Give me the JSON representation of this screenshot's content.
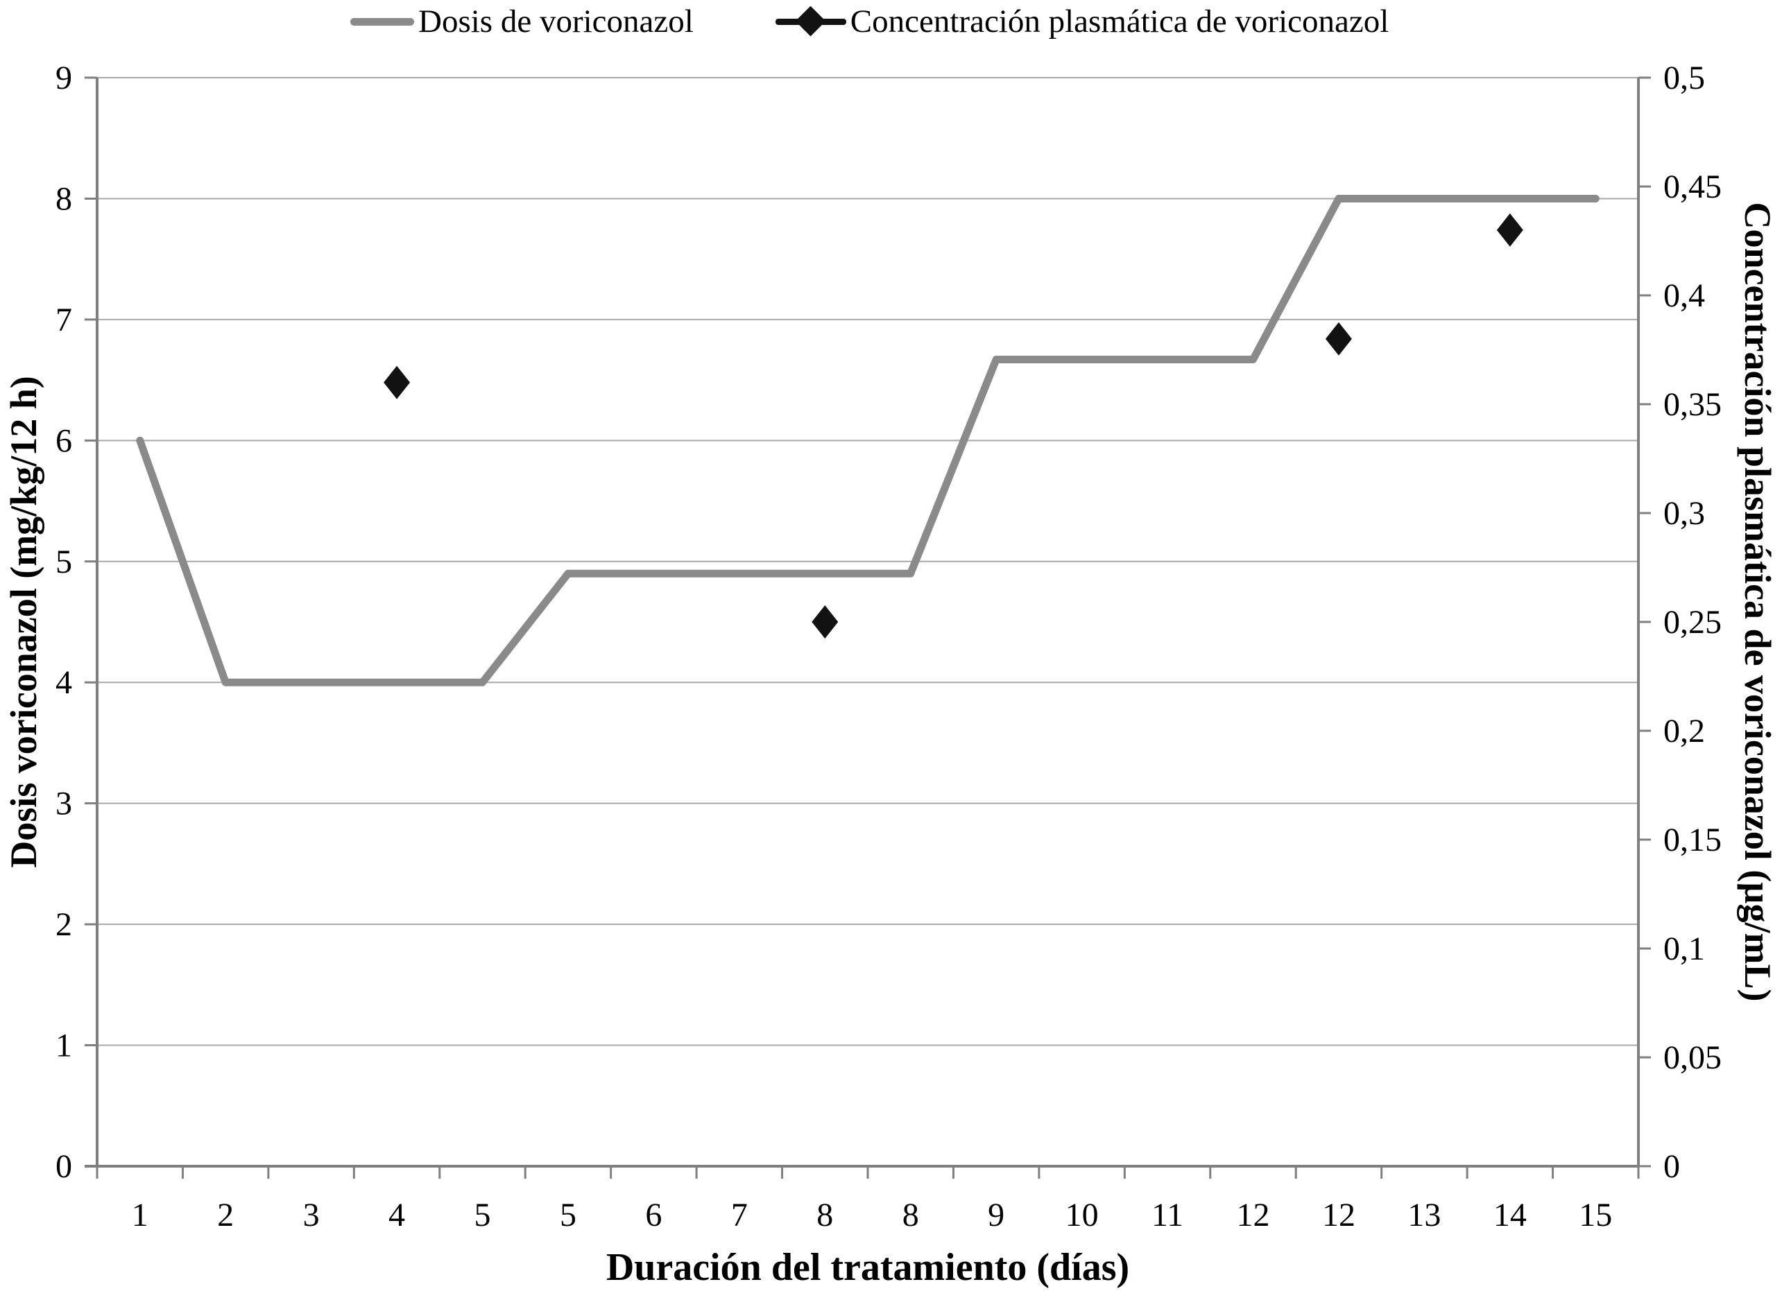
{
  "legend": {
    "items": [
      {
        "label": "Dosis de voriconazol",
        "swatch": "gray-line-icon",
        "color": "#8a8a8a"
      },
      {
        "label": "Concentración plasmática de voriconazol",
        "swatch": "black-diamond-line-icon",
        "color": "#121212"
      }
    ]
  },
  "axes": {
    "left": {
      "title": "Dosis voriconazol (mg/kg/12 h)",
      "tick_labels": [
        "0",
        "1",
        "2",
        "3",
        "4",
        "5",
        "6",
        "7",
        "8",
        "9"
      ]
    },
    "right": {
      "title": "Concentración plasmática de voriconazol (µg/mL)",
      "tick_labels": [
        "0",
        "0,05",
        "0,1",
        "0,15",
        "0,2",
        "0,25",
        "0,3",
        "0,35",
        "0,4",
        "0,45",
        "0,5"
      ]
    },
    "x": {
      "title": "Duración del tratamiento (días)",
      "tick_labels": [
        "1",
        "2",
        "3",
        "4",
        "5",
        "5",
        "6",
        "7",
        "8",
        "8",
        "9",
        "10",
        "11",
        "12",
        "12",
        "13",
        "14",
        "15"
      ]
    }
  },
  "chart_data": {
    "type": "line",
    "title": "",
    "categories": [
      "1",
      "2",
      "3",
      "4",
      "5",
      "5",
      "6",
      "7",
      "8",
      "8",
      "9",
      "10",
      "11",
      "12",
      "12",
      "13",
      "14",
      "15"
    ],
    "xlabel": "Duración del tratamiento (días)",
    "left_axis": {
      "label": "Dosis voriconazol (mg/kg/12 h)",
      "range": [
        0,
        9
      ],
      "tick_step": 1
    },
    "right_axis": {
      "label": "Concentración plasmática de voriconazol (µg/mL)",
      "range": [
        0,
        0.5
      ],
      "tick_step": 0.05
    },
    "grid": "horizontal",
    "legend_position": "top",
    "series": [
      {
        "name": "Dosis de voriconazol",
        "type": "line",
        "axis": "left",
        "color": "#8a8a8a",
        "values": [
          6,
          4,
          4,
          4,
          4,
          4.9,
          4.9,
          4.9,
          4.9,
          4.9,
          6.67,
          6.67,
          6.67,
          6.67,
          8,
          8,
          8,
          8
        ]
      },
      {
        "name": "Concentración plasmática de voriconazol",
        "type": "scatter",
        "axis": "right",
        "marker": "diamond",
        "color": "#121212",
        "points": [
          {
            "category_index": 3,
            "x_label": "4",
            "value": 0.36
          },
          {
            "category_index": 8,
            "x_label": "8",
            "value": 0.25
          },
          {
            "category_index": 14,
            "x_label": "12",
            "value": 0.38
          },
          {
            "category_index": 16,
            "x_label": "14",
            "value": 0.43
          }
        ]
      }
    ]
  },
  "colors": {
    "dose_line": "#8a8a8a",
    "concentration_marker": "#121212",
    "gridline": "#a8a8a8",
    "axis_line": "#7f7f7f",
    "text": "#000000",
    "background": "#ffffff"
  }
}
